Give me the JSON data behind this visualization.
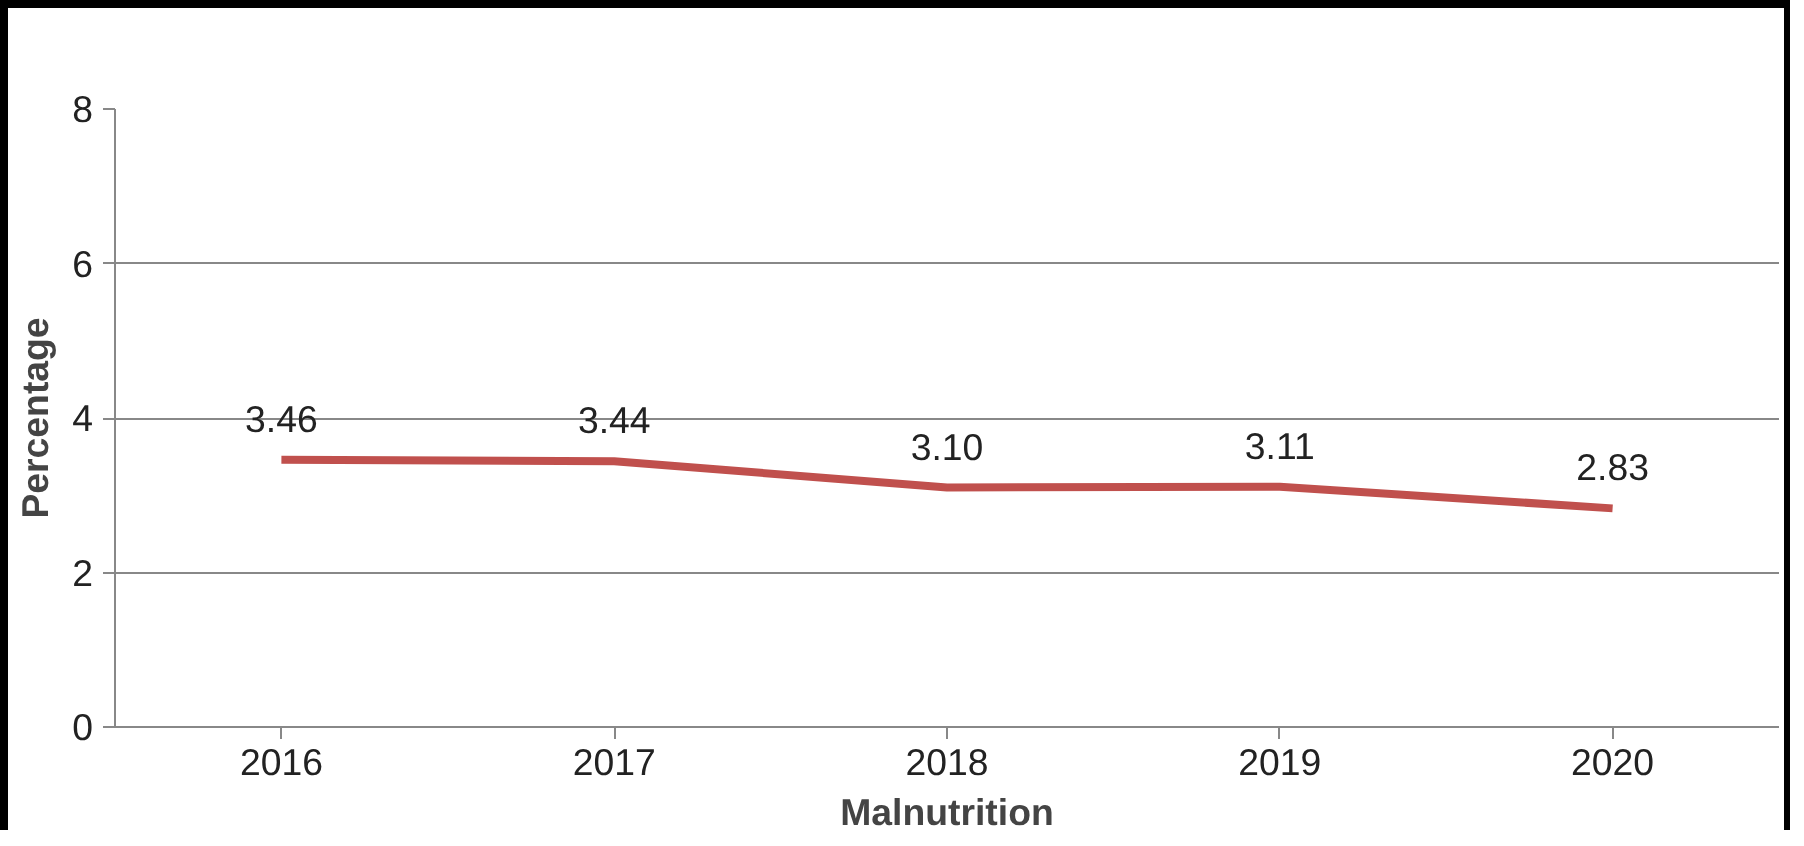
{
  "chart_data": {
    "type": "line",
    "xlabel": "Malnutrition",
    "ylabel": "Percentage",
    "categories": [
      "2016",
      "2017",
      "2018",
      "2019",
      "2020"
    ],
    "series": [
      {
        "color": "#c0504d",
        "values": [
          3.46,
          3.44,
          3.1,
          3.11,
          2.83
        ],
        "value_labels": [
          "3.46",
          "3.44",
          "3.10",
          "3.11",
          "2.83"
        ]
      }
    ],
    "ylim": [
      0,
      8
    ],
    "yticks": [
      0,
      2,
      4,
      6,
      8
    ],
    "grid": "y",
    "marker": "none",
    "line_style": "solid"
  }
}
